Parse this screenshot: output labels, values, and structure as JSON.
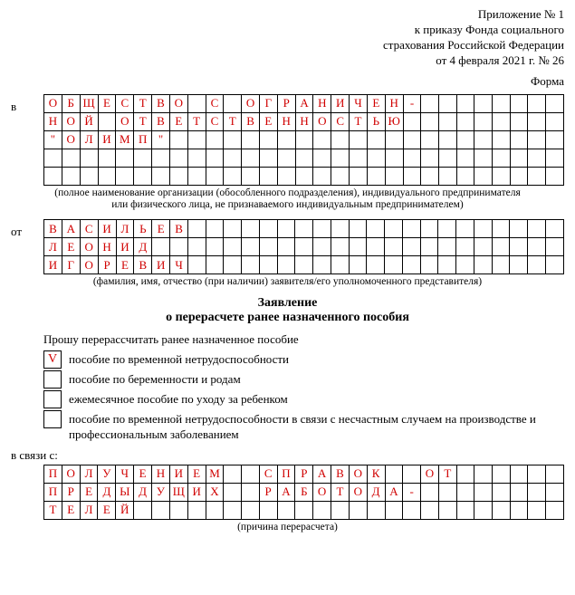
{
  "header": {
    "line1": "Приложение № 1",
    "line2": "к приказу Фонда социального",
    "line3": "страхования Российской Федерации",
    "line4": "от 4 февраля 2021 г. № 26",
    "forma": "Форма"
  },
  "org": {
    "side": "в",
    "grid": {
      "cols": 29,
      "rows": [
        [
          "О",
          "Б",
          "Щ",
          "Е",
          "С",
          "Т",
          "В",
          "О",
          "",
          "С",
          "",
          "О",
          "Г",
          "Р",
          "А",
          "Н",
          "И",
          "Ч",
          "Е",
          "Н",
          "-",
          "",
          "",
          "",
          "",
          "",
          "",
          "",
          ""
        ],
        [
          "Н",
          "О",
          "Й",
          "",
          "О",
          "Т",
          "В",
          "Е",
          "Т",
          "С",
          "Т",
          "В",
          "Е",
          "Н",
          "Н",
          "О",
          "С",
          "Т",
          "Ь",
          "Ю",
          "",
          "",
          "",
          "",
          "",
          "",
          "",
          "",
          ""
        ],
        [
          "\"",
          "О",
          "Л",
          "И",
          "М",
          "П",
          "\"",
          "",
          "",
          "",
          "",
          "",
          "",
          "",
          "",
          "",
          "",
          "",
          "",
          "",
          "",
          "",
          "",
          "",
          "",
          "",
          "",
          "",
          ""
        ],
        [
          "",
          "",
          "",
          "",
          "",
          "",
          "",
          "",
          "",
          "",
          "",
          "",
          "",
          "",
          "",
          "",
          "",
          "",
          "",
          "",
          "",
          "",
          "",
          "",
          "",
          "",
          "",
          "",
          ""
        ],
        [
          "",
          "",
          "",
          "",
          "",
          "",
          "",
          "",
          "",
          "",
          "",
          "",
          "",
          "",
          "",
          "",
          "",
          "",
          "",
          "",
          "",
          "",
          "",
          "",
          "",
          "",
          "",
          "",
          ""
        ]
      ]
    },
    "caption1": "(полное наименование организации (обособленного подразделения), индивидуального предпринимателя",
    "caption2": "или физического лица, не признаваемого индивидуальным предпринимателем)"
  },
  "person": {
    "side": "от",
    "grid": {
      "cols": 29,
      "rows": [
        [
          "В",
          "А",
          "С",
          "И",
          "Л",
          "Ь",
          "Е",
          "В",
          "",
          "",
          "",
          "",
          "",
          "",
          "",
          "",
          "",
          "",
          "",
          "",
          "",
          "",
          "",
          "",
          "",
          "",
          "",
          "",
          ""
        ],
        [
          "Л",
          "Е",
          "О",
          "Н",
          "И",
          "Д",
          "",
          "",
          "",
          "",
          "",
          "",
          "",
          "",
          "",
          "",
          "",
          "",
          "",
          "",
          "",
          "",
          "",
          "",
          "",
          "",
          "",
          "",
          ""
        ],
        [
          "И",
          "Г",
          "О",
          "Р",
          "Е",
          "В",
          "И",
          "Ч",
          "",
          "",
          "",
          "",
          "",
          "",
          "",
          "",
          "",
          "",
          "",
          "",
          "",
          "",
          "",
          "",
          "",
          "",
          "",
          "",
          ""
        ]
      ]
    },
    "caption": "(фамилия, имя, отчество (при наличии) заявителя/его уполномоченного представителя)"
  },
  "titles": {
    "t1": "Заявление",
    "t2": "о перерасчете ранее назначенного пособия"
  },
  "request_line": "Прошу перерассчитать ранее назначенное пособие",
  "options": [
    {
      "mark": "V",
      "label": "пособие по временной нетрудоспособности"
    },
    {
      "mark": "",
      "label": "пособие по беременности и родам"
    },
    {
      "mark": "",
      "label": "ежемесячное пособие по уходу за ребенком"
    },
    {
      "mark": "",
      "label": "пособие по временной нетрудоспособности в связи с несчастным случаем на производстве и профессиональным заболеванием"
    }
  ],
  "reason": {
    "label": "в связи с:",
    "grid": {
      "cols": 29,
      "rows": [
        [
          "П",
          "О",
          "Л",
          "У",
          "Ч",
          "Е",
          "Н",
          "И",
          "Е",
          "М",
          "",
          "",
          "С",
          "П",
          "Р",
          "А",
          "В",
          "О",
          "К",
          "",
          "",
          "О",
          "Т",
          "",
          "",
          "",
          "",
          "",
          ""
        ],
        [
          "П",
          "Р",
          "Е",
          "Д",
          "Ы",
          "Д",
          "У",
          "Щ",
          "И",
          "Х",
          "",
          "",
          "Р",
          "А",
          "Б",
          "О",
          "Т",
          "О",
          "Д",
          "А",
          "-",
          "",
          "",
          "",
          "",
          "",
          "",
          "",
          ""
        ],
        [
          "Т",
          "Е",
          "Л",
          "Е",
          "Й",
          "",
          "",
          "",
          "",
          "",
          "",
          "",
          "",
          "",
          "",
          "",
          "",
          "",
          "",
          "",
          "",
          "",
          "",
          "",
          "",
          "",
          "",
          "",
          ""
        ]
      ]
    },
    "caption": "(причина перерасчета)"
  },
  "style": {
    "cell_text_color": "#d00000",
    "border_color": "#000000",
    "font_family": "Times New Roman",
    "base_font_size_pt": 10
  }
}
